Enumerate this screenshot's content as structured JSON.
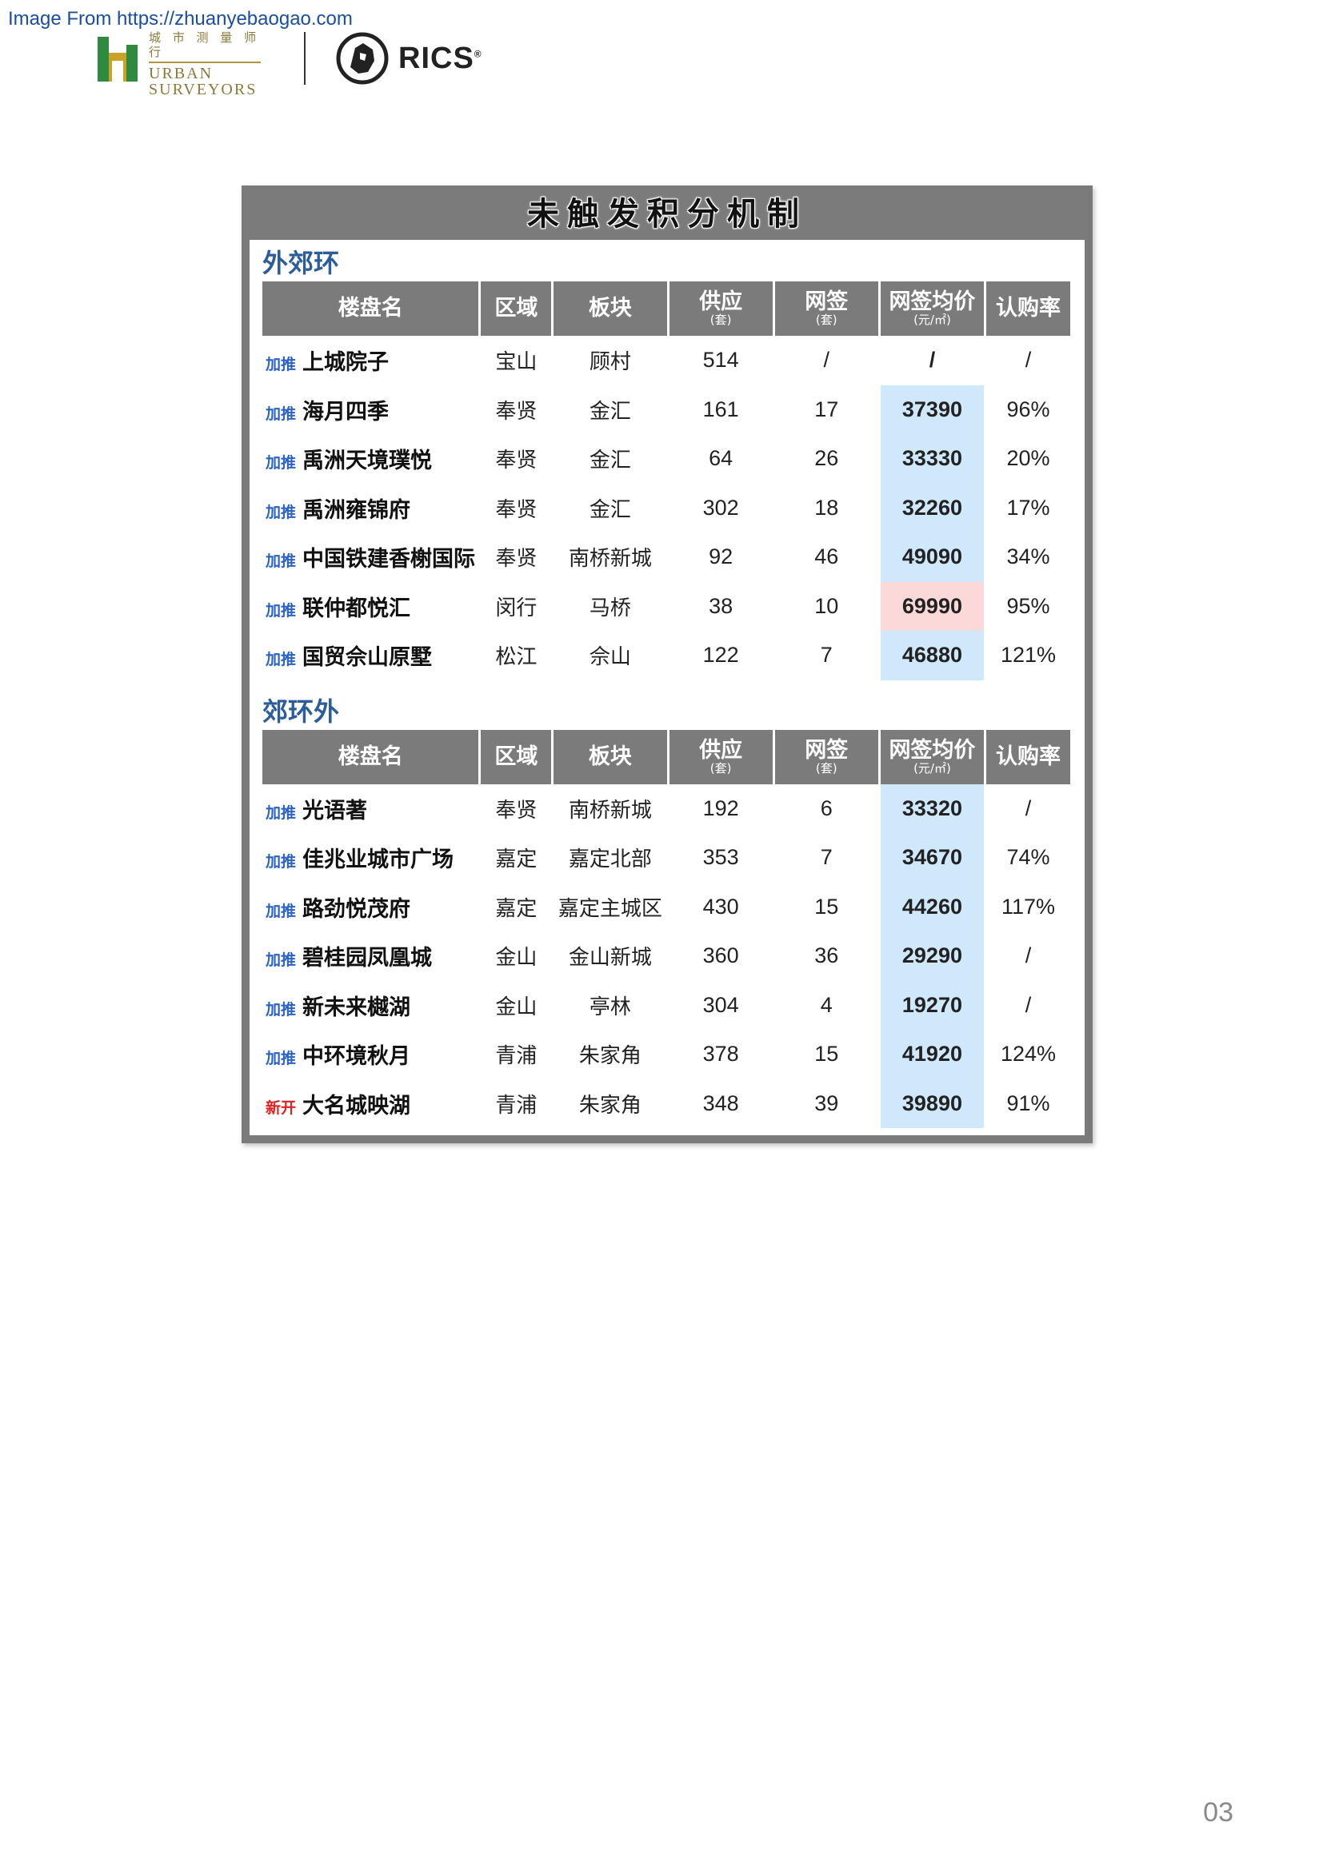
{
  "source": {
    "text": "Image From https://zhuanyebaogao.com"
  },
  "logos": {
    "urban": {
      "cn": "城 市 测 量 师 行",
      "en_line1": "URBAN",
      "en_line2": "SURVEYORS"
    },
    "rics": {
      "text": "RICS",
      "reg": "®"
    }
  },
  "panel": {
    "title": "未触发积分机制"
  },
  "columns": [
    {
      "label": "楼盘名",
      "unit": ""
    },
    {
      "label": "区域",
      "unit": ""
    },
    {
      "label": "板块",
      "unit": ""
    },
    {
      "label": "供应",
      "unit": "(套)"
    },
    {
      "label": "网签",
      "unit": "(套)"
    },
    {
      "label": "网签均价",
      "unit": "(元/㎡)"
    },
    {
      "label": "认购率",
      "unit": ""
    }
  ],
  "sections": [
    {
      "heading": "外郊环",
      "rows": [
        {
          "tag": "加推",
          "tag_kind": "push",
          "name": "上城院子",
          "area": "宝山",
          "block": "顾村",
          "supply": "514",
          "signed": "/",
          "price": "/",
          "price_highlight": "none",
          "rate": "/"
        },
        {
          "tag": "加推",
          "tag_kind": "push",
          "name": "海月四季",
          "area": "奉贤",
          "block": "金汇",
          "supply": "161",
          "signed": "17",
          "price": "37390",
          "price_highlight": "blue",
          "rate": "96%"
        },
        {
          "tag": "加推",
          "tag_kind": "push",
          "name": "禹洲天境璞悦",
          "area": "奉贤",
          "block": "金汇",
          "supply": "64",
          "signed": "26",
          "price": "33330",
          "price_highlight": "blue",
          "rate": "20%"
        },
        {
          "tag": "加推",
          "tag_kind": "push",
          "name": "禹洲雍锦府",
          "area": "奉贤",
          "block": "金汇",
          "supply": "302",
          "signed": "18",
          "price": "32260",
          "price_highlight": "blue",
          "rate": "17%"
        },
        {
          "tag": "加推",
          "tag_kind": "push",
          "name": "中国铁建香榭国际",
          "area": "奉贤",
          "block": "南桥新城",
          "supply": "92",
          "signed": "46",
          "price": "49090",
          "price_highlight": "blue",
          "rate": "34%"
        },
        {
          "tag": "加推",
          "tag_kind": "push",
          "name": "联仲都悦汇",
          "area": "闵行",
          "block": "马桥",
          "supply": "38",
          "signed": "10",
          "price": "69990",
          "price_highlight": "pink",
          "rate": "95%"
        },
        {
          "tag": "加推",
          "tag_kind": "push",
          "name": "国贸佘山原墅",
          "area": "松江",
          "block": "佘山",
          "supply": "122",
          "signed": "7",
          "price": "46880",
          "price_highlight": "blue",
          "rate": "121%"
        }
      ]
    },
    {
      "heading": "郊环外",
      "rows": [
        {
          "tag": "加推",
          "tag_kind": "push",
          "name": "光语著",
          "area": "奉贤",
          "block": "南桥新城",
          "supply": "192",
          "signed": "6",
          "price": "33320",
          "price_highlight": "blue",
          "rate": "/"
        },
        {
          "tag": "加推",
          "tag_kind": "push",
          "name": "佳兆业城市广场",
          "area": "嘉定",
          "block": "嘉定北部",
          "supply": "353",
          "signed": "7",
          "price": "34670",
          "price_highlight": "blue",
          "rate": "74%"
        },
        {
          "tag": "加推",
          "tag_kind": "push",
          "name": "路劲悦茂府",
          "area": "嘉定",
          "block": "嘉定主城区",
          "supply": "430",
          "signed": "15",
          "price": "44260",
          "price_highlight": "blue",
          "rate": "117%"
        },
        {
          "tag": "加推",
          "tag_kind": "push",
          "name": "碧桂园凤凰城",
          "area": "金山",
          "block": "金山新城",
          "supply": "360",
          "signed": "36",
          "price": "29290",
          "price_highlight": "blue",
          "rate": "/"
        },
        {
          "tag": "加推",
          "tag_kind": "push",
          "name": "新未来樾湖",
          "area": "金山",
          "block": "亭林",
          "supply": "304",
          "signed": "4",
          "price": "19270",
          "price_highlight": "blue",
          "rate": "/"
        },
        {
          "tag": "加推",
          "tag_kind": "push",
          "name": "中环境秋月",
          "area": "青浦",
          "block": "朱家角",
          "supply": "378",
          "signed": "15",
          "price": "41920",
          "price_highlight": "blue",
          "rate": "124%"
        },
        {
          "tag": "新开",
          "tag_kind": "new",
          "name": "大名城映湖",
          "area": "青浦",
          "block": "朱家角",
          "supply": "348",
          "signed": "39",
          "price": "39890",
          "price_highlight": "blue",
          "rate": "91%"
        }
      ]
    }
  ],
  "page": {
    "number": "03"
  },
  "colors": {
    "header_gray": "#7b7b7b",
    "heading_blue": "#2b5d9b",
    "price_blue": "#cfe8fb",
    "price_pink": "#fbd9d9",
    "tag_blue": "#2a62c9",
    "tag_red": "#e02020"
  }
}
